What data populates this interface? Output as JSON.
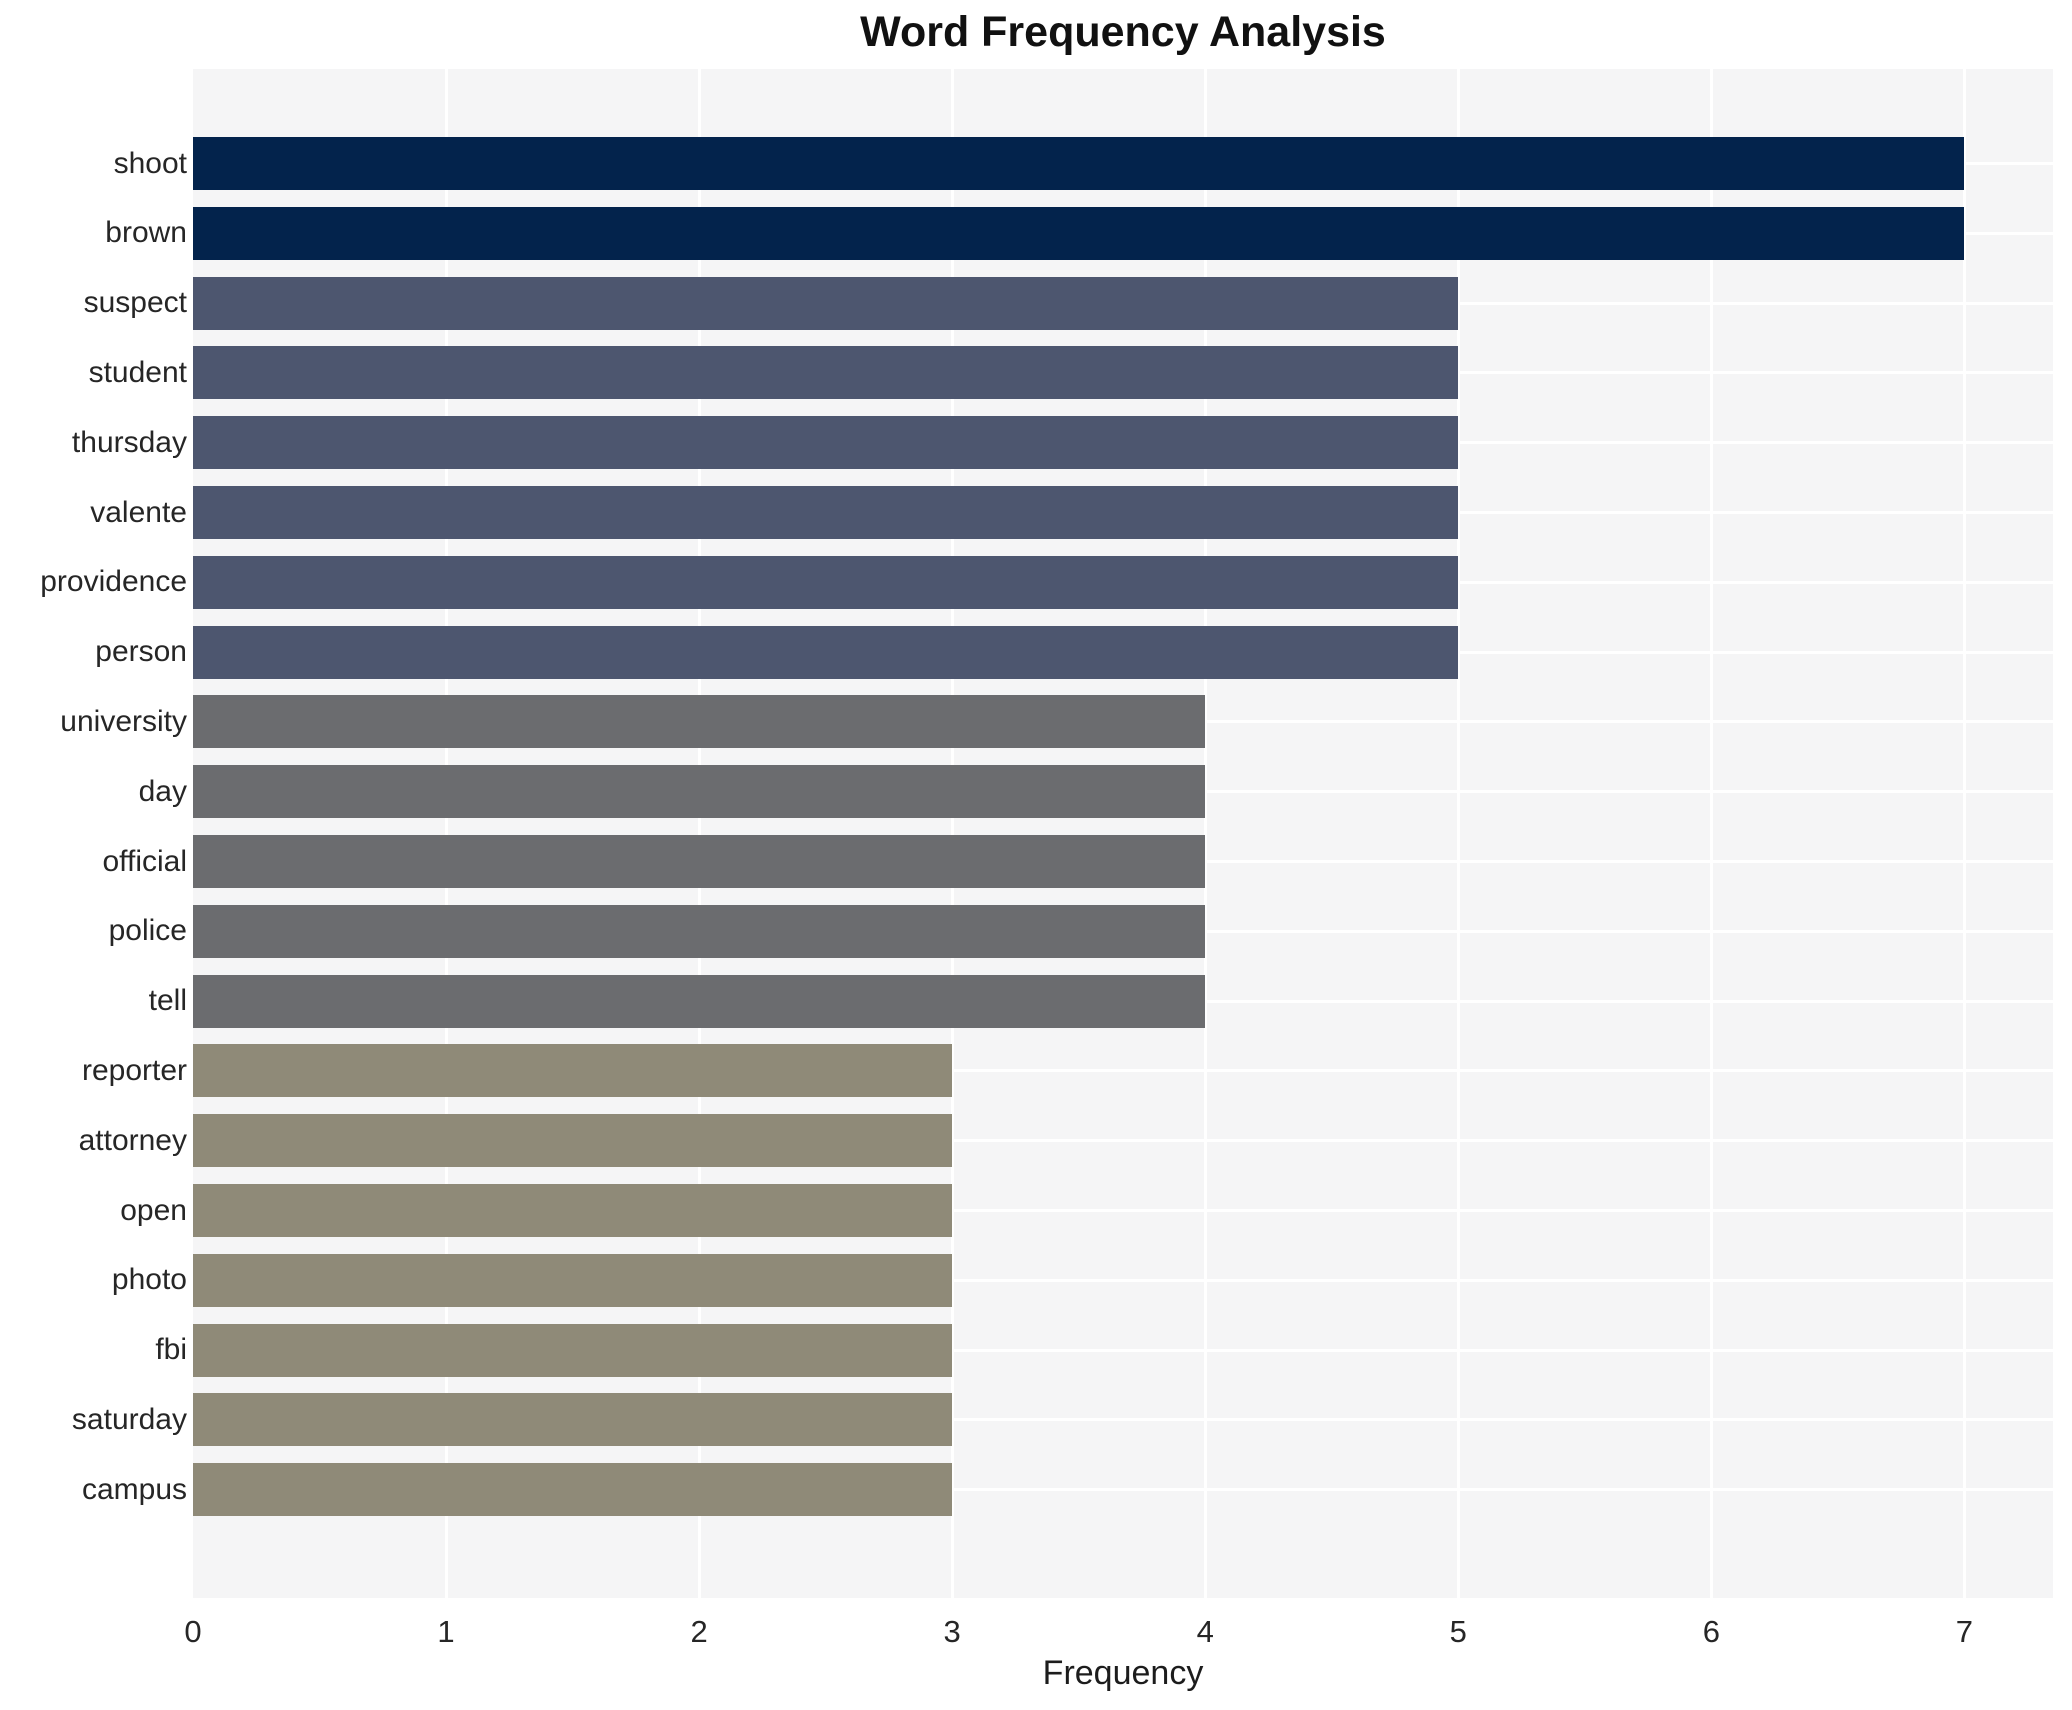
{
  "chart_data": {
    "type": "bar",
    "orientation": "horizontal",
    "title": "Word Frequency Analysis",
    "xlabel": "Frequency",
    "ylabel": "",
    "categories": [
      "shoot",
      "brown",
      "suspect",
      "student",
      "thursday",
      "valente",
      "providence",
      "person",
      "university",
      "day",
      "official",
      "police",
      "tell",
      "reporter",
      "attorney",
      "open",
      "photo",
      "fbi",
      "saturday",
      "campus"
    ],
    "values": [
      7,
      7,
      5,
      5,
      5,
      5,
      5,
      5,
      4,
      4,
      4,
      4,
      4,
      3,
      3,
      3,
      3,
      3,
      3,
      3
    ],
    "xlim": [
      0,
      7.35
    ],
    "xticks": [
      "0",
      "1",
      "2",
      "3",
      "4",
      "5",
      "6",
      "7"
    ],
    "grid": "on",
    "legend": "none",
    "colors": {
      "value_7": "#03234c",
      "value_5": "#4d566f",
      "value_4": "#6b6c6f",
      "value_3": "#8f8a78",
      "plot_background": "#f5f5f6",
      "gridline": "#ffffff"
    }
  }
}
